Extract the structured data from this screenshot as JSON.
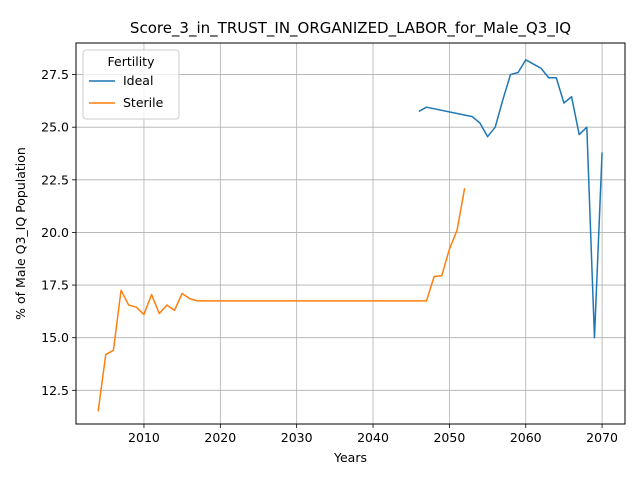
{
  "chart_data": {
    "type": "line",
    "title": "Score_3_in_TRUST_IN_ORGANIZED_LABOR_for_Male_Q3_IQ",
    "xlabel": "Years",
    "ylabel": "% of Male Q3_IQ Population",
    "xlim": [
      2001.1,
      2073.0
    ],
    "ylim": [
      10.9,
      29.0
    ],
    "xticks": [
      2010,
      2020,
      2030,
      2040,
      2050,
      2060,
      2070
    ],
    "yticks": [
      12.5,
      15.0,
      17.5,
      20.0,
      22.5,
      25.0,
      27.5
    ],
    "ytick_labels": [
      "12.5",
      "15.0",
      "17.5",
      "20.0",
      "22.5",
      "25.0",
      "27.5"
    ],
    "grid": true,
    "legend": {
      "title": "Fertility",
      "placement": "top-left"
    },
    "series": [
      {
        "name": "Ideal",
        "color": "#1f77b4",
        "x": [
          2046,
          2047,
          2053,
          2054,
          2055,
          2056,
          2057,
          2058,
          2059,
          2060,
          2061,
          2062,
          2063,
          2064,
          2065,
          2066,
          2067,
          2068,
          2069,
          2070
        ],
        "y": [
          25.75,
          25.95,
          25.5,
          25.2,
          24.55,
          25.0,
          26.3,
          27.5,
          27.6,
          28.2,
          28.0,
          27.8,
          27.35,
          27.35,
          26.15,
          26.45,
          24.65,
          25.0,
          15.0,
          23.8
        ]
      },
      {
        "name": "Sterile",
        "color": "#ff7f0e",
        "x": [
          2004,
          2005,
          2006,
          2007,
          2008,
          2009,
          2010,
          2011,
          2012,
          2013,
          2014,
          2015,
          2016,
          2017,
          2047,
          2048,
          2049,
          2050,
          2051,
          2052
        ],
        "y": [
          11.5,
          14.2,
          14.4,
          17.25,
          16.55,
          16.45,
          16.1,
          17.05,
          16.15,
          16.55,
          16.3,
          17.1,
          16.85,
          16.75,
          16.75,
          17.9,
          17.95,
          19.2,
          20.1,
          22.1
        ]
      }
    ]
  }
}
